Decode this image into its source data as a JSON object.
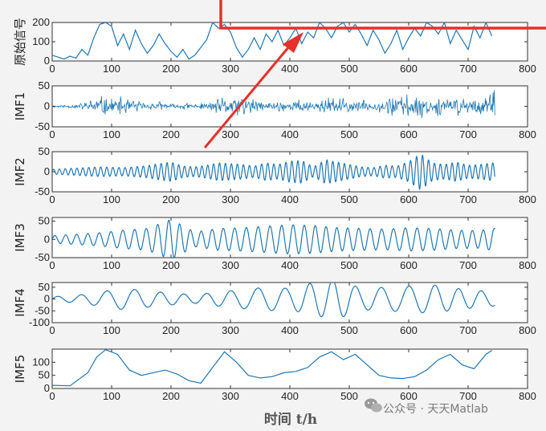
{
  "chart_data": {
    "type": "line",
    "xlabel": "时间 t/h",
    "xlim": [
      0,
      800
    ],
    "xticks": [
      0,
      100,
      200,
      300,
      400,
      500,
      600,
      700,
      800
    ],
    "line_color": "#1f77b4",
    "subplots": [
      {
        "name": "raw",
        "ylabel": "原始信号",
        "ylim": [
          0,
          200
        ],
        "yticks": [
          0,
          100,
          200
        ],
        "x": [
          0,
          10,
          20,
          30,
          40,
          50,
          60,
          70,
          80,
          90,
          100,
          110,
          120,
          130,
          140,
          150,
          160,
          170,
          180,
          190,
          200,
          210,
          220,
          230,
          240,
          250,
          260,
          270,
          280,
          290,
          300,
          310,
          320,
          330,
          340,
          350,
          360,
          370,
          380,
          390,
          400,
          410,
          420,
          430,
          440,
          450,
          460,
          470,
          480,
          490,
          500,
          510,
          520,
          530,
          540,
          550,
          560,
          570,
          580,
          590,
          600,
          610,
          620,
          630,
          640,
          650,
          660,
          670,
          680,
          690,
          700,
          710,
          720,
          730,
          740
        ],
        "y": [
          30,
          20,
          10,
          25,
          15,
          60,
          30,
          120,
          190,
          200,
          180,
          80,
          140,
          60,
          160,
          90,
          40,
          80,
          140,
          90,
          50,
          20,
          60,
          10,
          30,
          70,
          110,
          200,
          170,
          190,
          150,
          70,
          20,
          60,
          120,
          60,
          140,
          100,
          160,
          80,
          120,
          170,
          90,
          150,
          120,
          200,
          170,
          120,
          180,
          200,
          150,
          190,
          140,
          80,
          160,
          110,
          40,
          90,
          160,
          60,
          120,
          170,
          130,
          200,
          180,
          140,
          200,
          90,
          160,
          110,
          60,
          180,
          120,
          200,
          130
        ]
      },
      {
        "name": "imf1",
        "ylabel": "IMF1",
        "ylim": [
          -50,
          50
        ],
        "yticks": [
          -50,
          0,
          50
        ],
        "kind": "noise",
        "seed": 11,
        "env_x": [
          0,
          20,
          40,
          55,
          80,
          100,
          120,
          140,
          160,
          180,
          200,
          220,
          240,
          260,
          280,
          300,
          320,
          340,
          360,
          380,
          400,
          420,
          440,
          460,
          480,
          500,
          520,
          540,
          560,
          580,
          600,
          620,
          640,
          660,
          680,
          700,
          720,
          740
        ],
        "env_y": [
          3,
          4,
          6,
          14,
          30,
          24,
          26,
          18,
          8,
          14,
          6,
          12,
          6,
          10,
          22,
          26,
          33,
          18,
          12,
          16,
          14,
          22,
          10,
          24,
          28,
          16,
          20,
          8,
          26,
          30,
          34,
          30,
          26,
          22,
          28,
          24,
          26,
          40
        ]
      },
      {
        "name": "imf2",
        "ylabel": "IMF2",
        "ylim": [
          -50,
          50
        ],
        "yticks": [
          -50,
          0,
          50
        ],
        "kind": "oscillation",
        "period": 10,
        "env_x": [
          0,
          40,
          80,
          120,
          160,
          180,
          200,
          220,
          240,
          260,
          280,
          300,
          320,
          340,
          360,
          380,
          400,
          420,
          440,
          460,
          480,
          500,
          520,
          540,
          560,
          580,
          600,
          620,
          640,
          660,
          680,
          700,
          720,
          740
        ],
        "env_y": [
          6,
          9,
          12,
          10,
          15,
          20,
          24,
          14,
          12,
          16,
          22,
          20,
          18,
          14,
          22,
          18,
          26,
          28,
          12,
          30,
          24,
          18,
          12,
          10,
          16,
          14,
          25,
          45,
          22,
          18,
          24,
          16,
          18,
          22
        ]
      },
      {
        "name": "imf3",
        "ylabel": "IMF3",
        "ylim": [
          -50,
          60
        ],
        "yticks": [
          -50,
          0,
          50
        ],
        "kind": "oscillation",
        "period": 19,
        "env_x": [
          0,
          40,
          80,
          120,
          160,
          200,
          240,
          280,
          320,
          360,
          400,
          440,
          480,
          520,
          560,
          600,
          640,
          680,
          720,
          740
        ],
        "env_y": [
          10,
          14,
          18,
          25,
          30,
          55,
          20,
          30,
          32,
          36,
          40,
          38,
          32,
          30,
          28,
          32,
          30,
          25,
          24,
          30
        ]
      },
      {
        "name": "imf4",
        "ylabel": "IMF4",
        "ylim": [
          -100,
          70
        ],
        "yticks": [
          -100,
          -50,
          0,
          50
        ],
        "kind": "oscillation",
        "period": 42,
        "env_x": [
          0,
          40,
          80,
          120,
          160,
          200,
          240,
          280,
          320,
          360,
          400,
          440,
          480,
          520,
          560,
          600,
          640,
          680,
          720,
          740
        ],
        "env_y": [
          10,
          15,
          30,
          45,
          35,
          25,
          18,
          30,
          40,
          50,
          45,
          70,
          85,
          45,
          50,
          55,
          60,
          45,
          35,
          30
        ]
      },
      {
        "name": "imf5",
        "ylabel": "IMF5",
        "ylim": [
          0,
          150
        ],
        "yticks": [
          0,
          50,
          100
        ],
        "x": [
          0,
          30,
          60,
          75,
          90,
          110,
          130,
          150,
          170,
          190,
          210,
          230,
          250,
          270,
          290,
          310,
          330,
          350,
          370,
          390,
          410,
          430,
          450,
          470,
          490,
          510,
          530,
          550,
          570,
          590,
          610,
          630,
          650,
          670,
          690,
          710,
          730,
          740
        ],
        "y": [
          12,
          10,
          60,
          120,
          148,
          130,
          70,
          50,
          60,
          70,
          55,
          30,
          20,
          80,
          140,
          100,
          50,
          40,
          45,
          60,
          65,
          80,
          120,
          140,
          110,
          130,
          90,
          50,
          40,
          38,
          45,
          70,
          110,
          130,
          90,
          75,
          130,
          145
        ]
      }
    ]
  },
  "watermark": {
    "text": "公众号 · 天天Matlab",
    "icon": "wechat-icon"
  },
  "annotation": {
    "rect_color": "#e8302a",
    "arrow_color": "#e8302a"
  }
}
